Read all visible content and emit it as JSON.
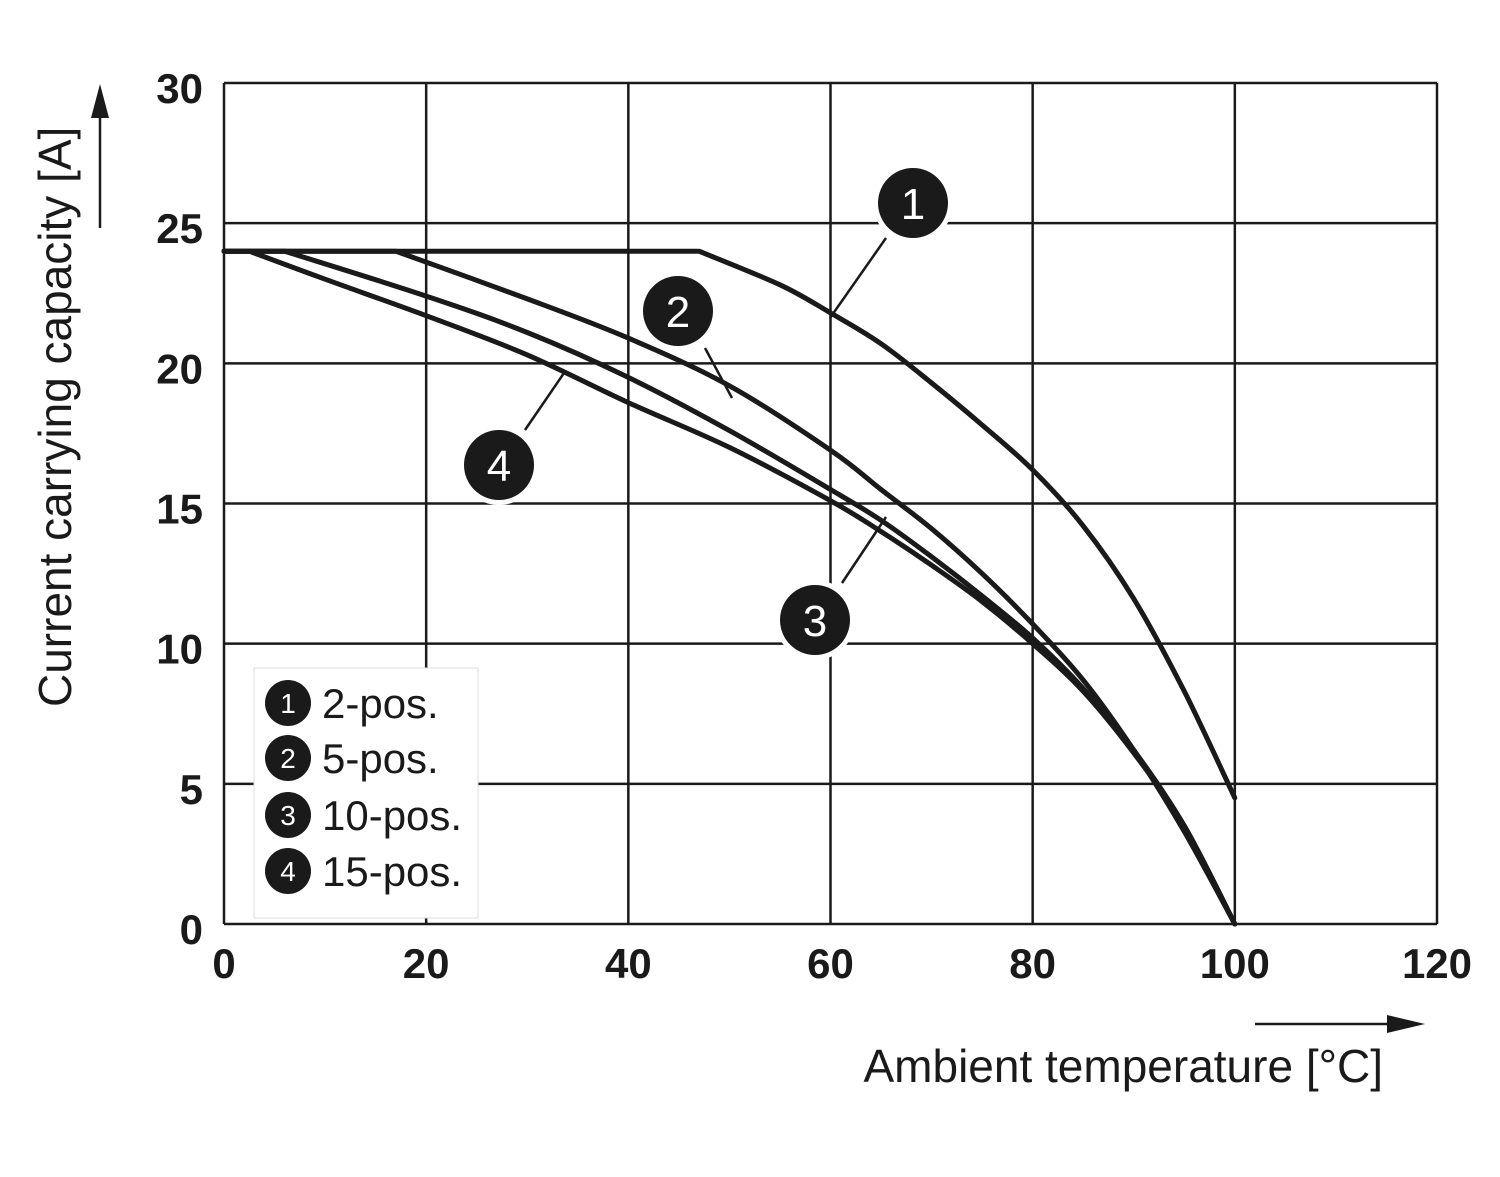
{
  "chart_data": {
    "type": "line",
    "xlabel": "Ambient temperature [°C]",
    "ylabel": "Current carrying capacity [A]",
    "xlim": [
      0,
      120
    ],
    "ylim": [
      0,
      30
    ],
    "xticks": [
      "0",
      "20",
      "40",
      "60",
      "80",
      "100",
      "120"
    ],
    "yticks": [
      "0",
      "5",
      "10",
      "15",
      "20",
      "25",
      "30"
    ],
    "grid": true,
    "legend_position": "bottom-left",
    "series": [
      {
        "marker": "1",
        "name": "2-pos.",
        "x": [
          0,
          47,
          55,
          60,
          65,
          70,
          75,
          80,
          85,
          90,
          95,
          100
        ],
        "y": [
          24,
          24,
          22.8,
          21.8,
          20.7,
          19.3,
          17.8,
          16.2,
          14.2,
          11.6,
          8.3,
          4.5
        ]
      },
      {
        "marker": "2",
        "name": "5-pos.",
        "x": [
          0,
          17,
          30,
          40,
          50,
          60,
          65,
          70,
          75,
          80,
          85,
          90,
          95,
          100
        ],
        "y": [
          24,
          24,
          22.3,
          20.9,
          19.2,
          16.9,
          15.5,
          14.1,
          12.5,
          10.7,
          8.7,
          6.2,
          3.3,
          0
        ]
      },
      {
        "marker": "3",
        "name": "10-pos.",
        "x": [
          0,
          6,
          20,
          30,
          40,
          50,
          60,
          65,
          70,
          75,
          80,
          85,
          90,
          95,
          100
        ],
        "y": [
          24,
          24,
          22.4,
          21.1,
          19.5,
          17.6,
          15.5,
          14.4,
          13.1,
          11.7,
          10.2,
          8.4,
          6.2,
          3.5,
          0
        ]
      },
      {
        "marker": "4",
        "name": "15-pos.",
        "x": [
          0,
          2.5,
          10,
          20,
          30,
          40,
          50,
          60,
          65,
          70,
          75,
          80,
          85,
          90,
          95,
          100
        ],
        "y": [
          24,
          24,
          23,
          21.7,
          20.3,
          18.6,
          17.0,
          15.1,
          14.0,
          12.8,
          11.5,
          10.0,
          8.3,
          6.1,
          3.5,
          0
        ]
      }
    ],
    "annotations": [
      {
        "label": "1",
        "series": "2-pos."
      },
      {
        "label": "2",
        "series": "5-pos."
      },
      {
        "label": "3",
        "series": "10-pos."
      },
      {
        "label": "4",
        "series": "15-pos."
      }
    ],
    "colors": {
      "line": "#1a1a1a",
      "background": "#ffffff",
      "marker_fill": "#1a1a1a",
      "marker_text": "#ffffff"
    }
  }
}
